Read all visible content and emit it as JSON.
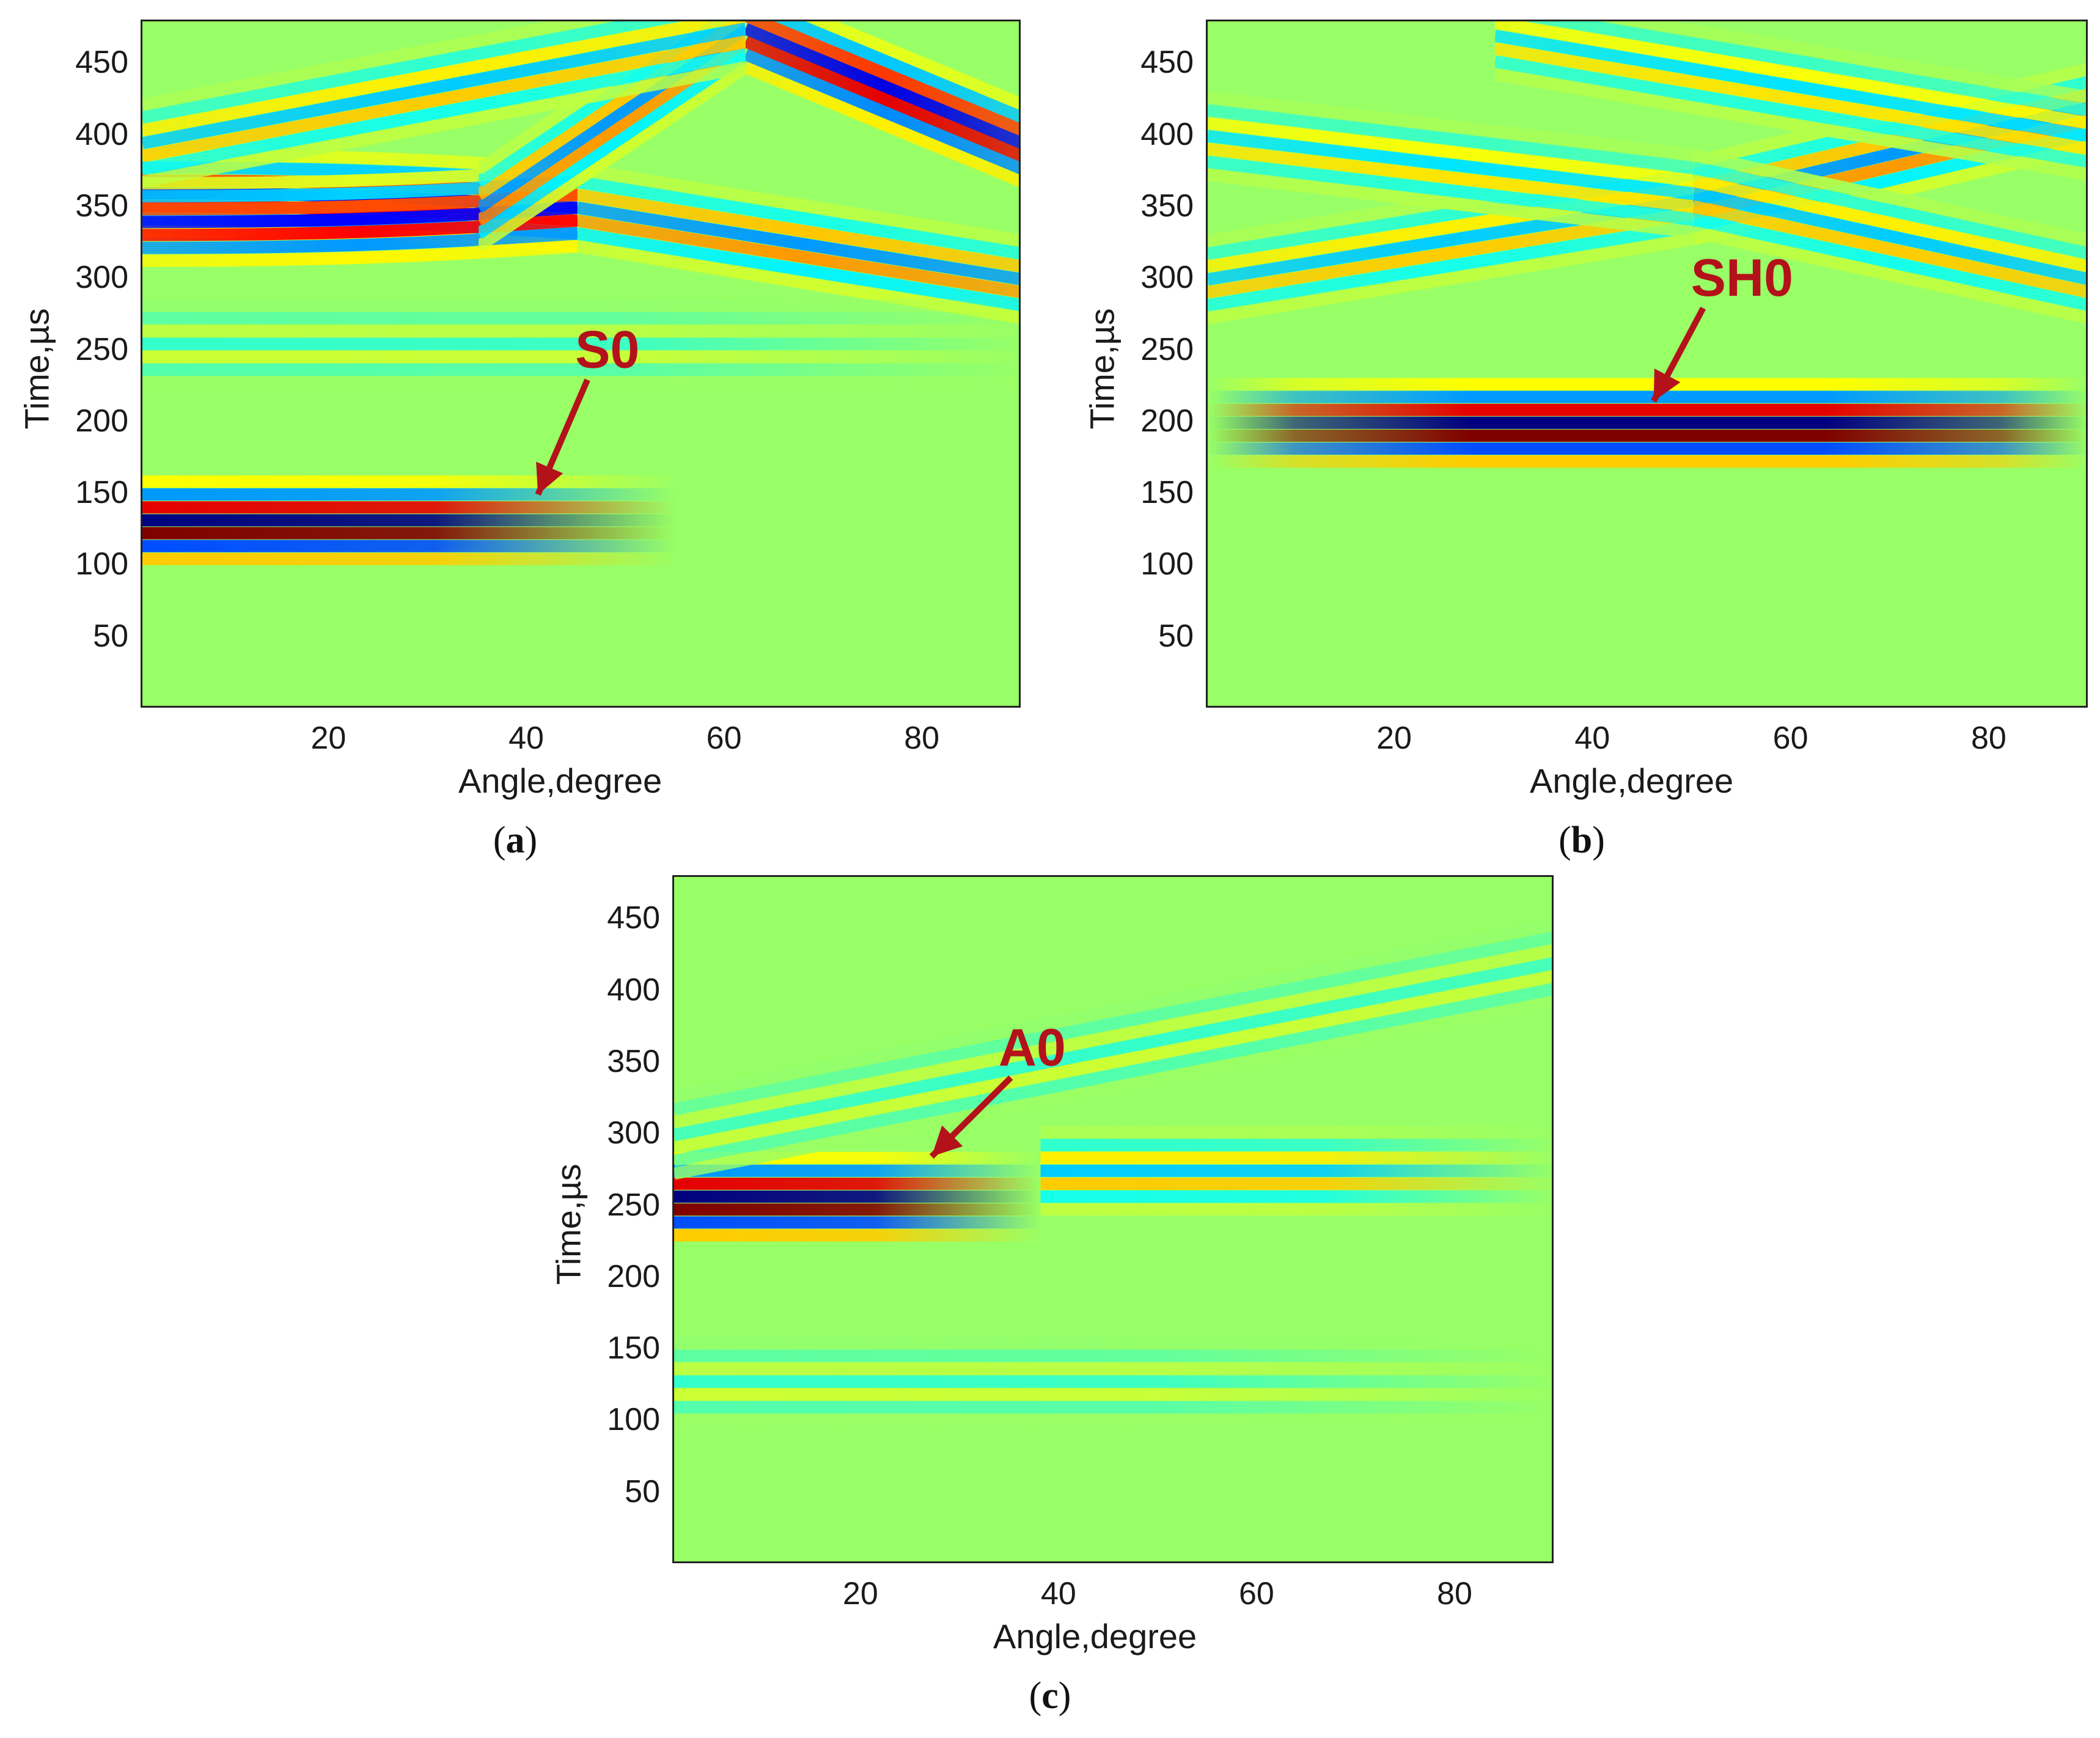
{
  "chart_data": [
    {
      "type": "heatmap",
      "panel": "a",
      "caption": "a",
      "xlabel": "Angle,degree",
      "ylabel": "Time,µs",
      "xlim": [
        1,
        90
      ],
      "ylim": [
        0,
        480
      ],
      "xticks": [
        20,
        40,
        60,
        80
      ],
      "yticks": [
        50,
        100,
        150,
        200,
        250,
        300,
        350,
        400,
        450
      ],
      "colormap": "jet",
      "annotation": {
        "text": "S0",
        "arrow_from": [
          46,
          230
        ],
        "arrow_to": [
          41,
          150
        ]
      },
      "bands": [
        {
          "t": 132,
          "x0": 1,
          "x1": 55,
          "amp": 1.0,
          "fade": "right"
        },
        {
          "t": 360,
          "x0": 1,
          "x1": 45,
          "amp": 0.75,
          "shape": "converging",
          "t_end": 350
        },
        {
          "t": 340,
          "x0": 1,
          "x1": 45,
          "amp": 0.75,
          "shape": "converging",
          "t_end": 350
        },
        {
          "t": 350,
          "x0": 45,
          "x1": 90,
          "amp": 0.45,
          "shape": "diagonal",
          "t_end": 300
        },
        {
          "t": 350,
          "x0": 35,
          "x1": 62,
          "amp": 0.45,
          "shape": "diagonal",
          "t_end": 475
        },
        {
          "t": 475,
          "x0": 62,
          "x1": 90,
          "amp": 0.8,
          "shape": "diagonal",
          "t_end": 395
        },
        {
          "t": 395,
          "x0": 1,
          "x1": 62,
          "amp": 0.35,
          "shape": "diagonal",
          "t_end": 475
        },
        {
          "t": 255,
          "x0": 1,
          "x1": 90,
          "amp": 0.15,
          "fade": "right"
        }
      ],
      "color_scale": {
        "min": -1,
        "max": 1
      }
    },
    {
      "type": "heatmap",
      "panel": "b",
      "caption": "b",
      "xlabel": "Angle,degree",
      "ylabel": "Time,µs",
      "xlim": [
        1,
        90
      ],
      "ylim": [
        0,
        480
      ],
      "xticks": [
        20,
        40,
        60,
        80
      ],
      "yticks": [
        50,
        100,
        150,
        200,
        250,
        300,
        350,
        400,
        450
      ],
      "colormap": "jet",
      "annotation": {
        "text": "SH0",
        "arrow_from": [
          51,
          280
        ],
        "arrow_to": [
          46,
          215
        ]
      },
      "bands": [
        {
          "t": 200,
          "x0": 1,
          "x1": 90,
          "amp": 1.0,
          "fade": "both"
        },
        {
          "t": 300,
          "x0": 1,
          "x1": 50,
          "amp": 0.35,
          "shape": "diagonal",
          "t_end": 355
        },
        {
          "t": 355,
          "x0": 50,
          "x1": 90,
          "amp": 0.45,
          "shape": "diagonal",
          "t_end": 420
        },
        {
          "t": 400,
          "x0": 1,
          "x1": 50,
          "amp": 0.3,
          "shape": "diagonal",
          "t_end": 360
        },
        {
          "t": 360,
          "x0": 50,
          "x1": 90,
          "amp": 0.35,
          "shape": "diagonal",
          "t_end": 300
        },
        {
          "t": 470,
          "x0": 30,
          "x1": 90,
          "amp": 0.3,
          "shape": "diagonal",
          "t_end": 400
        }
      ],
      "color_scale": {
        "min": -1,
        "max": 1
      }
    },
    {
      "type": "heatmap",
      "panel": "c",
      "caption": "c",
      "xlabel": "Angle,degree",
      "ylabel": "Time,µs",
      "xlim": [
        1,
        90
      ],
      "ylim": [
        0,
        480
      ],
      "xticks": [
        20,
        40,
        60,
        80
      ],
      "yticks": [
        50,
        100,
        150,
        200,
        250,
        300,
        350,
        400,
        450
      ],
      "colormap": "jet",
      "annotation": {
        "text": "A0",
        "arrow_from": [
          35,
          340
        ],
        "arrow_to": [
          27,
          285
        ]
      },
      "bands": [
        {
          "t": 257,
          "x0": 1,
          "x1": 38,
          "amp": 1.0,
          "fade": "right"
        },
        {
          "t": 275,
          "x0": 38,
          "x1": 90,
          "amp": 0.35,
          "fade": "right"
        },
        {
          "t": 128,
          "x0": 1,
          "x1": 90,
          "amp": 0.15,
          "fade": "right"
        },
        {
          "t": 300,
          "x0": 1,
          "x1": 90,
          "amp": 0.15,
          "shape": "diagonal",
          "t_end": 420
        }
      ],
      "color_scale": {
        "min": -1,
        "max": 1
      }
    }
  ]
}
